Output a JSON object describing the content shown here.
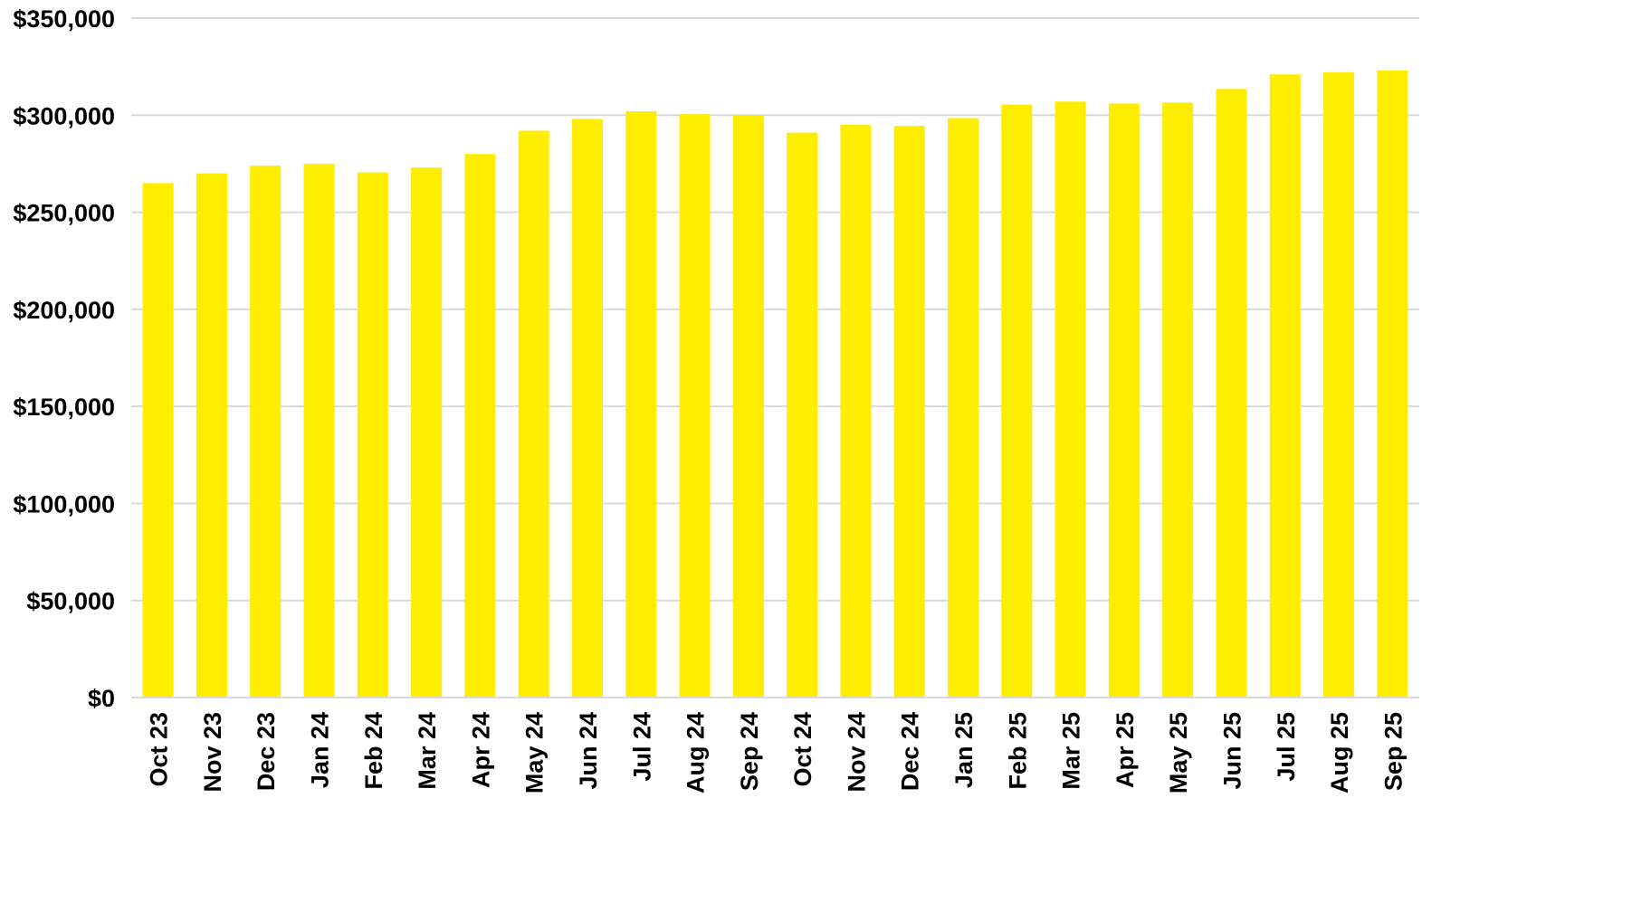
{
  "chart_data": {
    "type": "bar",
    "title": "",
    "xlabel": "",
    "ylabel": "",
    "categories": [
      "Oct 23",
      "Nov 23",
      "Dec 23",
      "Jan 24",
      "Feb 24",
      "Mar 24",
      "Apr 24",
      "May 24",
      "Jun 24",
      "Jul 24",
      "Aug 24",
      "Sep 24",
      "Oct 24",
      "Nov 24",
      "Dec 24",
      "Jan 25",
      "Feb 25",
      "Mar 25",
      "Apr 25",
      "May 25",
      "Jun 25",
      "Jul 25",
      "Aug 25",
      "Sep 25"
    ],
    "values": [
      265000,
      270000,
      274000,
      275000,
      270500,
      273000,
      280000,
      292000,
      298000,
      302000,
      300500,
      300000,
      291000,
      295000,
      294500,
      298500,
      305500,
      307000,
      306000,
      306500,
      313500,
      321000,
      322000,
      323000
    ],
    "ylim": [
      0,
      350000
    ],
    "yticks": [
      0,
      50000,
      100000,
      150000,
      200000,
      250000,
      300000,
      350000
    ],
    "ytick_labels": [
      "$0",
      "$50,000",
      "$100,000",
      "$150,000",
      "$200,000",
      "$250,000",
      "$300,000",
      "$350,000"
    ],
    "grid": true,
    "legend": "none",
    "bar_color": "#FFED00",
    "grid_color": "#D9D9D9",
    "text_color": "#000000"
  }
}
